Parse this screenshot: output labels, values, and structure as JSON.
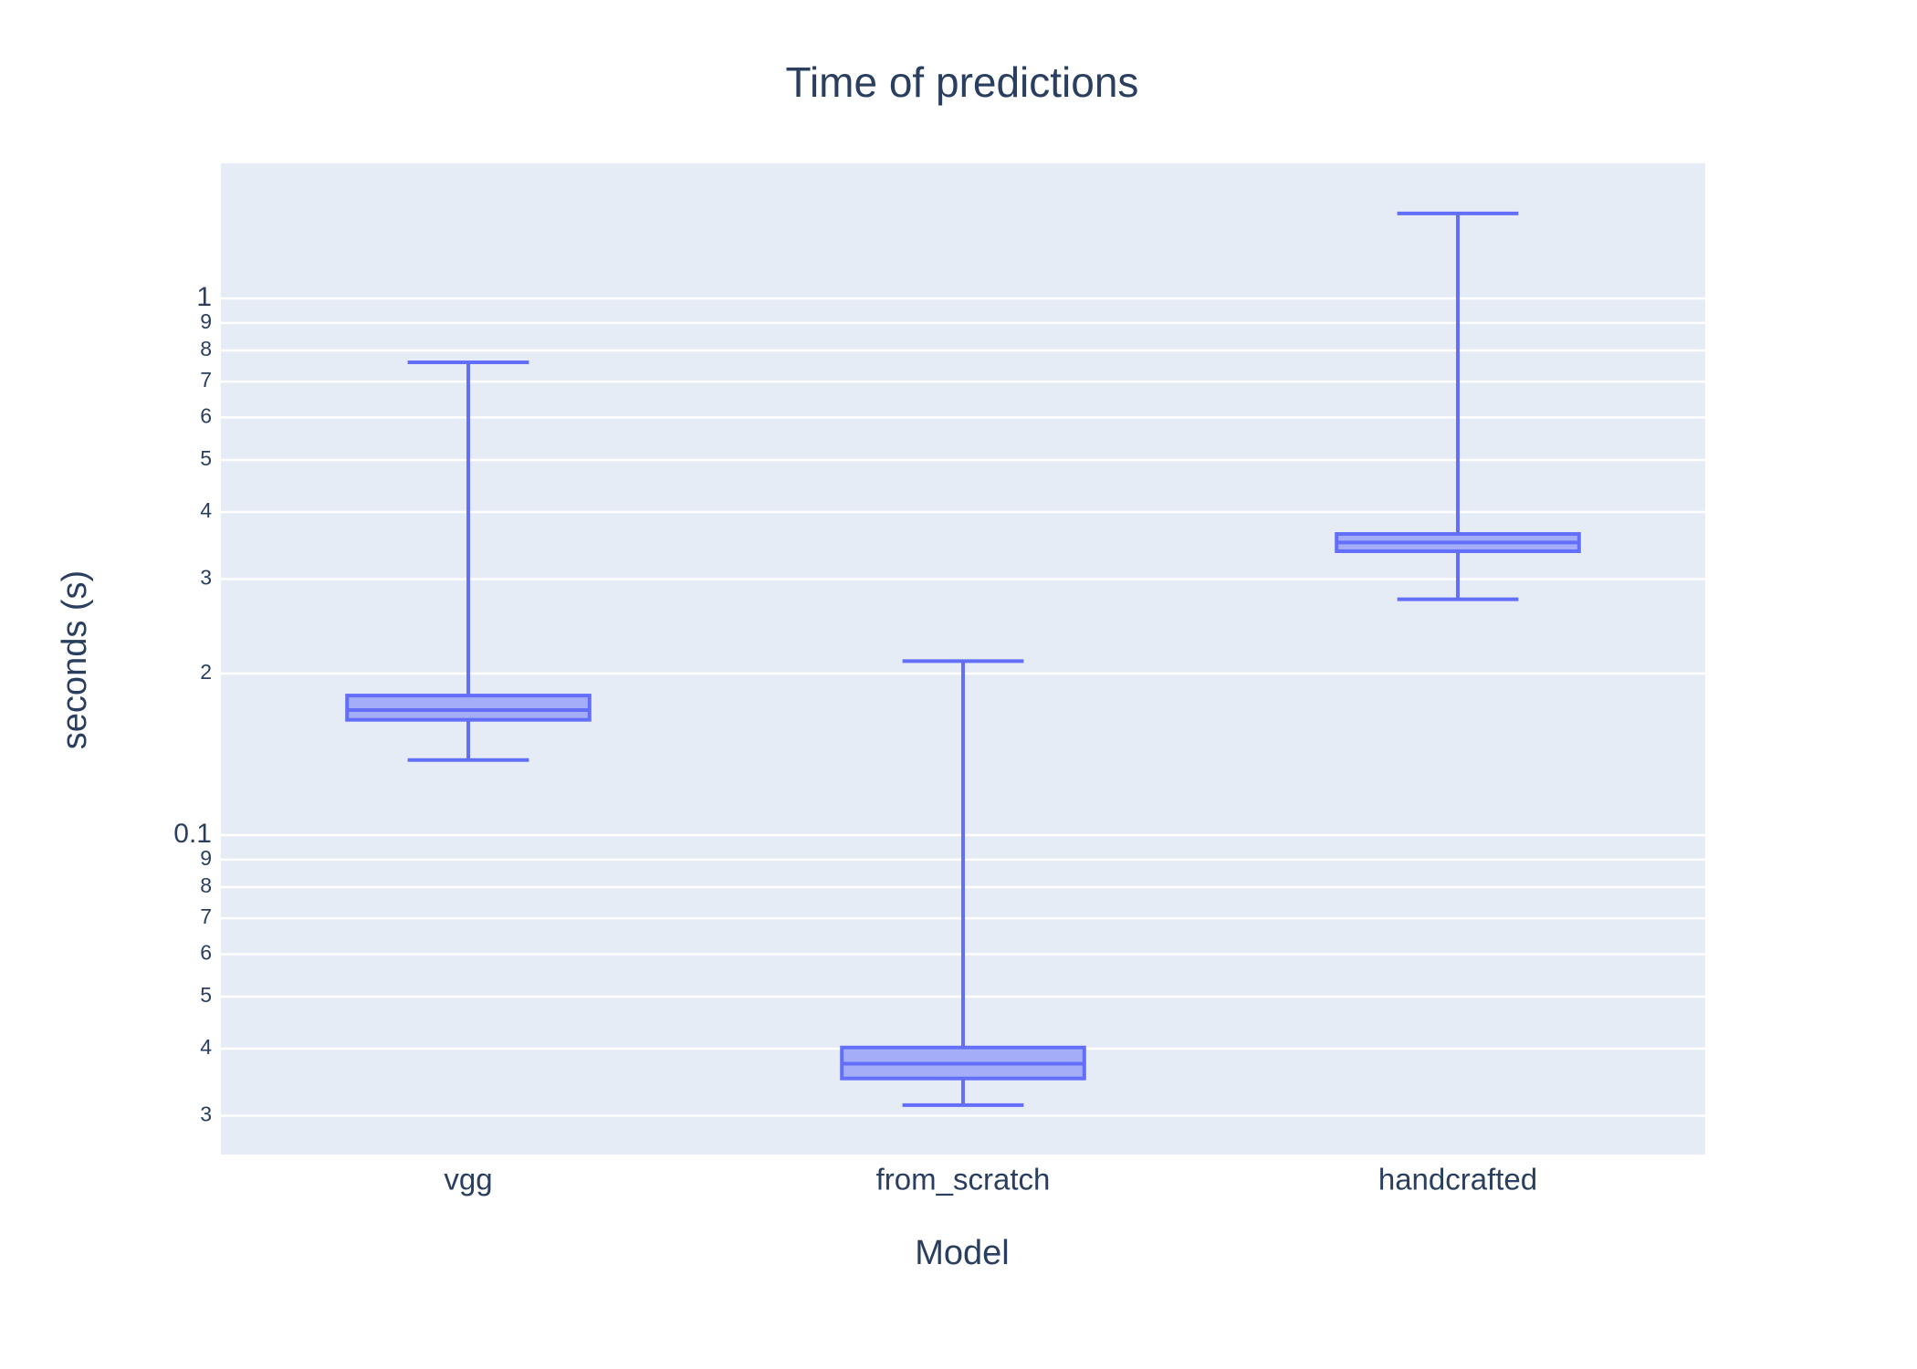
{
  "chart_data": {
    "type": "box",
    "title": "Time of predictions",
    "x_label": "Model",
    "y_label": "seconds (s)",
    "categories": [
      "vgg",
      "from_scratch",
      "handcrafted"
    ],
    "color": "#636efa",
    "boxes": [
      {
        "min": 0.138,
        "q1": 0.164,
        "median": 0.171,
        "q3": 0.182,
        "max": 0.76
      },
      {
        "min": 0.0314,
        "q1": 0.0352,
        "median": 0.0375,
        "q3": 0.0402,
        "max": 0.211
      },
      {
        "min": 0.275,
        "q1": 0.338,
        "median": 0.351,
        "q3": 0.364,
        "max": 1.44
      }
    ],
    "y_log": true,
    "grid": true,
    "ylim": [
      0.0254,
      1.785
    ],
    "yticks": [
      {
        "value": 0.03,
        "label": "3"
      },
      {
        "value": 0.04,
        "label": "4"
      },
      {
        "value": 0.05,
        "label": "5"
      },
      {
        "value": 0.06,
        "label": "6"
      },
      {
        "value": 0.07,
        "label": "7"
      },
      {
        "value": 0.08,
        "label": "8"
      },
      {
        "value": 0.09,
        "label": "9"
      },
      0.1,
      {
        "value": 0.2,
        "label": "2"
      },
      {
        "value": 0.3,
        "label": "3"
      },
      {
        "value": 0.4,
        "label": "4"
      },
      {
        "value": 0.5,
        "label": "5"
      },
      {
        "value": 0.6,
        "label": "6"
      },
      {
        "value": 0.7,
        "label": "7"
      },
      {
        "value": 0.8,
        "label": "8"
      },
      {
        "value": 0.9,
        "label": "9"
      },
      1
    ]
  }
}
